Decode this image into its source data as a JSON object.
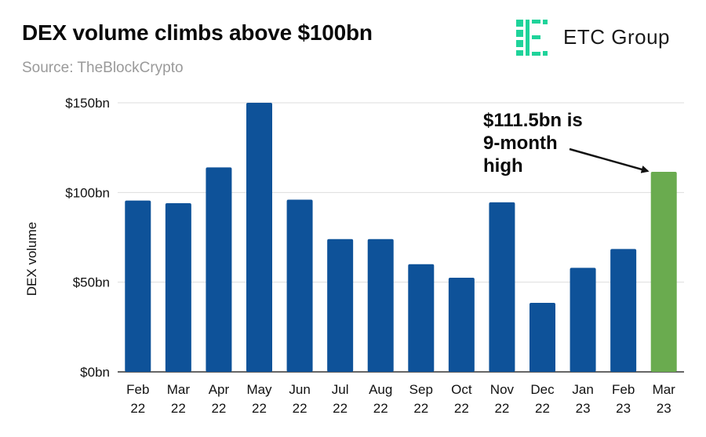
{
  "header": {
    "title": "DEX volume climbs above $100bn",
    "subtitle": "Source: TheBlockCrypto"
  },
  "logo": {
    "text": "ETC Group",
    "icon": "etc-group-logo-icon",
    "color": "#1fd39a"
  },
  "colors": {
    "bar": "#0e5299",
    "highlight_bar": "#6aab4f",
    "grid": "#dddddd",
    "axis": "#333333"
  },
  "chart_data": {
    "type": "bar",
    "title": "DEX volume climbs above $100bn",
    "ylabel": "DEX volume",
    "xlabel": "",
    "categories": [
      [
        "Feb",
        "22"
      ],
      [
        "Mar",
        "22"
      ],
      [
        "Apr",
        "22"
      ],
      [
        "May",
        "22"
      ],
      [
        "Jun",
        "22"
      ],
      [
        "Jul",
        "22"
      ],
      [
        "Aug",
        "22"
      ],
      [
        "Sep",
        "22"
      ],
      [
        "Oct",
        "22"
      ],
      [
        "Nov",
        "22"
      ],
      [
        "Dec",
        "22"
      ],
      [
        "Jan",
        "23"
      ],
      [
        "Feb",
        "23"
      ],
      [
        "Mar",
        "23"
      ]
    ],
    "values": [
      95.5,
      94,
      114,
      150,
      96,
      74,
      74,
      60,
      52.5,
      94.5,
      38.5,
      58,
      68.5,
      111.5
    ],
    "ylim": [
      0,
      150
    ],
    "yticks": [
      0,
      50,
      100,
      150
    ],
    "ytick_labels": [
      "$0bn",
      "$50bn",
      "$100bn",
      "$150bn"
    ],
    "highlight_index": 13,
    "grid": true,
    "annotation": {
      "lines": [
        "$111.5bn is",
        "9-month",
        "high"
      ],
      "target_index": 13
    }
  }
}
